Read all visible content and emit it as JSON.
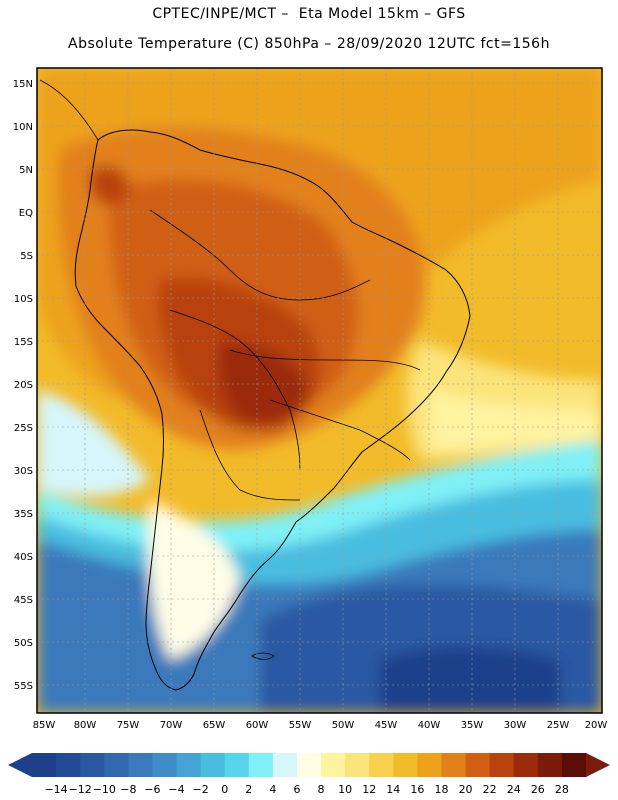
{
  "header": {
    "line1": "CPTEC/INPE/MCT –  Eta Model 15km – GFS",
    "line2": "Absolute Temperature (C) 850hPa – 28/09/2020 12UTC fct=156h"
  },
  "map": {
    "lat_labels": [
      "15N",
      "10N",
      "5N",
      "EQ",
      "5S",
      "10S",
      "15S",
      "20S",
      "25S",
      "30S",
      "35S",
      "40S",
      "45S",
      "50S",
      "55S"
    ],
    "lon_labels": [
      "85W",
      "80W",
      "75W",
      "70W",
      "65W",
      "60W",
      "55W",
      "50W",
      "45W",
      "40W",
      "35W",
      "30W",
      "25W",
      "20W"
    ]
  },
  "colorbar": {
    "labels": [
      "-14",
      "-12",
      "-10",
      "-8",
      "-6",
      "-4",
      "-2",
      "0",
      "2",
      "4",
      "6",
      "8",
      "10",
      "12",
      "14",
      "16",
      "18",
      "20",
      "22",
      "24",
      "26",
      "28"
    ],
    "colors": [
      "#1e3f8a",
      "#234a95",
      "#2a58a2",
      "#3168ae",
      "#3a79bb",
      "#3f8cc8",
      "#42a3d4",
      "#49bde0",
      "#56d5ea",
      "#7ff0f5",
      "#d6f6fb",
      "#fffde6",
      "#fff3a0",
      "#fbe47a",
      "#f7d14d",
      "#f2bb2a",
      "#eda21c",
      "#e2801b",
      "#d05f13",
      "#b8420c",
      "#9b2a08",
      "#7a1a08",
      "#5a0c06"
    ],
    "under_color": "#1e3f8a",
    "over_color": "#7a1a10"
  }
}
